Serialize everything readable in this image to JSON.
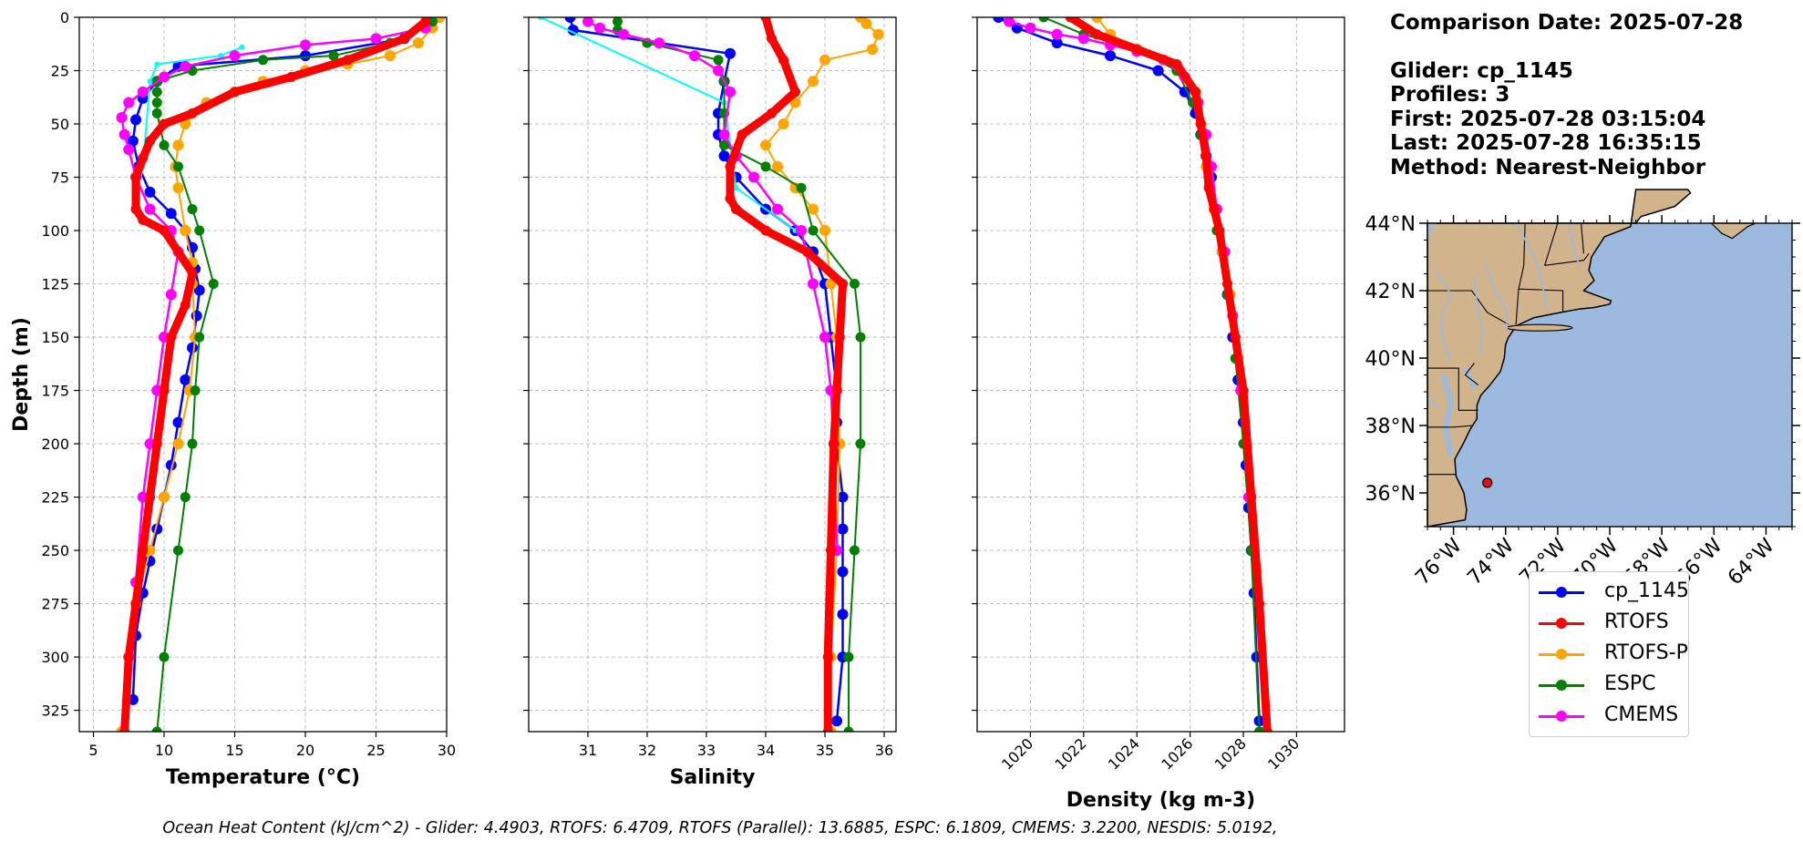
{
  "chart_data": [
    {
      "type": "line",
      "title": "",
      "xlabel": "Temperature (°C)",
      "ylabel": "Depth (m)",
      "xlim": [
        4,
        30
      ],
      "ylim": [
        335,
        0
      ],
      "xticks": [
        5,
        10,
        15,
        20,
        25,
        30
      ],
      "yticks": [
        0,
        25,
        50,
        75,
        100,
        125,
        150,
        175,
        200,
        225,
        250,
        275,
        300,
        325
      ],
      "grid": true,
      "series": [
        {
          "name": "cp_1145",
          "color": "#0000ff",
          "x": [
            29.5,
            27,
            20,
            11,
            9.5,
            8.5,
            8.0,
            7.8,
            8.2,
            9,
            10.5,
            11.5,
            12,
            12.2,
            12.5,
            12.3,
            12,
            11.5,
            11,
            10.5,
            10,
            9.5,
            9,
            8.5,
            8,
            7.8
          ],
          "y": [
            0,
            10,
            18,
            23,
            30,
            38,
            48,
            58,
            70,
            82,
            92,
            100,
            108,
            118,
            128,
            140,
            155,
            170,
            190,
            210,
            225,
            240,
            255,
            270,
            290,
            320
          ]
        },
        {
          "name": "RTOFS",
          "color": "#ff0000",
          "x": [
            28.5,
            27,
            23,
            19,
            15,
            12,
            10,
            9,
            8.5,
            8,
            8,
            8.5,
            10,
            12,
            11.5,
            10.5,
            10,
            9.5,
            9,
            8.5,
            8.0,
            7.5,
            7.2
          ],
          "y": [
            2,
            10,
            20,
            28,
            35,
            45,
            50,
            58,
            66,
            75,
            90,
            95,
            100,
            120,
            135,
            150,
            175,
            200,
            225,
            250,
            275,
            300,
            335
          ]
        },
        {
          "name": "RTOFS-P",
          "color": "#ffa500",
          "x": [
            29.5,
            29,
            28,
            26,
            23,
            20,
            17,
            15,
            13,
            11.5,
            11,
            10.8,
            11,
            11.5,
            12,
            12,
            12.2,
            11.8,
            11,
            10,
            9,
            8,
            7.5,
            7
          ],
          "y": [
            0,
            5,
            12,
            18,
            22,
            25,
            30,
            35,
            40,
            50,
            60,
            70,
            80,
            100,
            115,
            125,
            150,
            175,
            200,
            225,
            250,
            275,
            300,
            335
          ]
        },
        {
          "name": "ESPC",
          "color": "#008000",
          "x": [
            29,
            26,
            22,
            17,
            12,
            9.5,
            9.5,
            9.5,
            9.5,
            10,
            11,
            12,
            12.5,
            13.5,
            12.5,
            12.2,
            12,
            11.5,
            11,
            10,
            9.5
          ],
          "y": [
            2,
            12,
            18,
            20,
            25,
            30,
            35,
            40,
            45,
            60,
            70,
            90,
            100,
            125,
            150,
            175,
            200,
            225,
            250,
            300,
            335
          ]
        },
        {
          "name": "CMEMS",
          "color": "#ff00ff",
          "x": [
            28.5,
            25,
            20,
            15,
            11.5,
            10,
            8.5,
            7.5,
            7.0,
            7.2,
            7.5,
            8,
            9,
            10.5,
            11,
            10.5,
            10,
            9.5,
            9,
            8.5,
            8,
            7.5
          ],
          "y": [
            5,
            10,
            13,
            18,
            23,
            28,
            35,
            40,
            47,
            55,
            62,
            75,
            90,
            100,
            110,
            130,
            150,
            175,
            200,
            225,
            265,
            300
          ]
        },
        {
          "name": "cyan",
          "color": "#00ffff",
          "x": [
            15.5,
            14,
            9.5,
            9,
            8.5,
            8.2
          ],
          "y": [
            14,
            18,
            22,
            30,
            70,
            80
          ]
        }
      ]
    },
    {
      "type": "line",
      "xlabel": "Salinity",
      "ylabel": "",
      "xlim": [
        30.0,
        36.2
      ],
      "ylim": [
        335,
        0
      ],
      "xticks": [
        31,
        32,
        33,
        34,
        35,
        36
      ],
      "yticks": [
        0,
        25,
        50,
        75,
        100,
        125,
        150,
        175,
        200,
        225,
        250,
        275,
        300,
        325
      ],
      "grid": true,
      "series": [
        {
          "name": "cp_1145",
          "color": "#0000ff",
          "x": [
            30.7,
            30.75,
            33.4,
            33.3,
            33.2,
            33.2,
            33.3,
            33.5,
            34.0,
            34.5,
            34.8,
            35.0,
            35.1,
            35.2,
            35.2,
            35.2,
            35.3,
            35.3,
            35.3,
            35.3,
            35.3,
            35.2
          ],
          "y": [
            0,
            6,
            17,
            30,
            45,
            55,
            65,
            75,
            90,
            100,
            110,
            125,
            150,
            175,
            190,
            200,
            225,
            240,
            260,
            280,
            300,
            330
          ]
        },
        {
          "name": "RTOFS",
          "color": "#ff0000",
          "x": [
            34.0,
            34.1,
            34.3,
            34.5,
            34.1,
            33.6,
            33.4,
            33.4,
            33.5,
            34.0,
            34.7,
            35.3,
            35.25,
            35.2,
            35.15,
            35.1,
            35.05,
            35.05
          ],
          "y": [
            0,
            10,
            20,
            35,
            45,
            55,
            70,
            85,
            90,
            100,
            110,
            125,
            150,
            175,
            200,
            250,
            300,
            335
          ]
        },
        {
          "name": "RTOFS-P",
          "color": "#ffa500",
          "x": [
            35.6,
            35.7,
            35.9,
            35.8,
            35.0,
            34.8,
            34.5,
            34.3,
            34.0,
            34.2,
            34.5,
            34.8,
            35.0,
            35.1,
            35.2,
            35.2,
            35.25,
            35.2,
            35.1,
            35.1
          ],
          "y": [
            0,
            3,
            8,
            15,
            20,
            30,
            40,
            50,
            60,
            70,
            80,
            90,
            100,
            125,
            150,
            175,
            200,
            250,
            300,
            335
          ]
        },
        {
          "name": "ESPC",
          "color": "#008000",
          "x": [
            31.5,
            31.5,
            32,
            33.2,
            33.3,
            33.3,
            33.3,
            34.0,
            34.6,
            34.8,
            35.5,
            35.6,
            35.6,
            35.5,
            35.4,
            35.4
          ],
          "y": [
            2,
            6,
            12,
            20,
            30,
            45,
            60,
            70,
            80,
            100,
            125,
            150,
            200,
            250,
            300,
            335
          ]
        },
        {
          "name": "CMEMS",
          "color": "#ff00ff",
          "x": [
            31.0,
            31.2,
            31.6,
            32.2,
            32.8,
            33.2,
            33.4,
            33.3,
            33.5,
            33.8,
            34.2,
            34.6,
            34.8,
            35.0,
            35.1,
            35.15,
            35.2
          ],
          "y": [
            2,
            5,
            8,
            12,
            18,
            25,
            35,
            55,
            65,
            75,
            90,
            100,
            125,
            150,
            175,
            200,
            250
          ]
        },
        {
          "name": "cyan",
          "color": "#00ffff",
          "x": [
            30.2,
            33.3,
            33.5,
            34.5
          ],
          "y": [
            0,
            40,
            80,
            100
          ]
        }
      ]
    },
    {
      "type": "line",
      "xlabel": "Density (kg m-3)",
      "ylabel": "",
      "xlim": [
        1018.0,
        1031.8
      ],
      "ylim": [
        335,
        0
      ],
      "xticks": [
        1020,
        1022,
        1024,
        1026,
        1028,
        1030
      ],
      "yticks": [
        0,
        25,
        50,
        75,
        100,
        125,
        150,
        175,
        200,
        225,
        250,
        275,
        300,
        325
      ],
      "grid": true,
      "series": [
        {
          "name": "cp_1145",
          "color": "#0000ff",
          "x": [
            1018.8,
            1019.5,
            1021,
            1023,
            1024.8,
            1025.8,
            1026.2,
            1026.4,
            1026.6,
            1026.8,
            1027.0,
            1027.2,
            1027.4,
            1027.6,
            1027.8,
            1028.0,
            1028.1,
            1028.2,
            1028.3,
            1028.4,
            1028.5,
            1028.6
          ],
          "y": [
            0,
            5,
            12,
            18,
            25,
            35,
            45,
            55,
            65,
            75,
            90,
            110,
            130,
            150,
            170,
            190,
            210,
            230,
            250,
            270,
            300,
            330
          ]
        },
        {
          "name": "RTOFS",
          "color": "#ff0000",
          "x": [
            1021.5,
            1022.5,
            1024,
            1025.5,
            1026.2,
            1026.4,
            1026.6,
            1026.7,
            1026.9,
            1027.1,
            1027.4,
            1027.7,
            1028.0,
            1028.3,
            1028.6,
            1028.9
          ],
          "y": [
            0,
            8,
            15,
            22,
            35,
            50,
            65,
            80,
            90,
            100,
            125,
            150,
            175,
            225,
            275,
            335
          ]
        },
        {
          "name": "RTOFS-P",
          "color": "#ffa500",
          "x": [
            1022.5,
            1023,
            1024,
            1025.5,
            1026.2,
            1026.4,
            1026.6,
            1026.9,
            1027.2,
            1027.5,
            1027.8,
            1028.1,
            1028.5,
            1028.8
          ],
          "y": [
            0,
            8,
            15,
            25,
            35,
            50,
            70,
            90,
            110,
            130,
            160,
            200,
            260,
            335
          ]
        },
        {
          "name": "ESPC",
          "color": "#008000",
          "x": [
            1020.5,
            1022,
            1024,
            1025.5,
            1026.1,
            1026.4,
            1026.7,
            1027.0,
            1027.4,
            1027.7,
            1028.0,
            1028.3,
            1028.6
          ],
          "y": [
            0,
            8,
            15,
            25,
            40,
            55,
            75,
            100,
            130,
            160,
            200,
            250,
            335
          ]
        },
        {
          "name": "CMEMS",
          "color": "#ff00ff",
          "x": [
            1019.2,
            1020,
            1021,
            1022,
            1023,
            1024,
            1025,
            1025.8,
            1026.3,
            1026.6,
            1026.8,
            1027.0,
            1027.3,
            1027.6,
            1027.9,
            1028.2
          ],
          "y": [
            2,
            5,
            8,
            10,
            13,
            16,
            20,
            28,
            40,
            55,
            70,
            90,
            110,
            140,
            175,
            225
          ]
        }
      ]
    },
    {
      "type": "map",
      "lon_ticks": [
        "76°W",
        "74°W",
        "72°W",
        "70°W",
        "68°W",
        "66°W",
        "64°W"
      ],
      "lat_ticks": [
        "44°N",
        "42°N",
        "40°N",
        "38°N",
        "36°N"
      ],
      "lon_range": [
        -77.0,
        -63.0
      ],
      "lat_range": [
        35.0,
        44.0
      ],
      "land_color": "#d2b48c",
      "ocean_color": "#9cbae0",
      "glider_position": {
        "lon": -74.7,
        "lat": 36.3
      }
    }
  ],
  "info": {
    "comparison_date": "Comparison Date: 2025-07-28",
    "glider": "Glider: cp_1145",
    "profiles": "Profiles: 3",
    "first": "First: 2025-07-28 03:15:04",
    "last": "Last: 2025-07-28 16:35:15",
    "method": "Method: Nearest-Neighbor"
  },
  "legend": [
    {
      "label": "cp_1145",
      "color": "#0000ff"
    },
    {
      "label": "RTOFS",
      "color": "#ff0000"
    },
    {
      "label": "RTOFS-P",
      "color": "#ffa500"
    },
    {
      "label": "ESPC",
      "color": "#008000"
    },
    {
      "label": "CMEMS",
      "color": "#ff00ff"
    }
  ],
  "footer": "Ocean Heat Content (kJ/cm^2) - Glider: 4.4903,  RTOFS: 6.4709,  RTOFS (Parallel): 13.6885,  ESPC: 6.1809,  CMEMS: 3.2200,  NESDIS: 5.0192,"
}
